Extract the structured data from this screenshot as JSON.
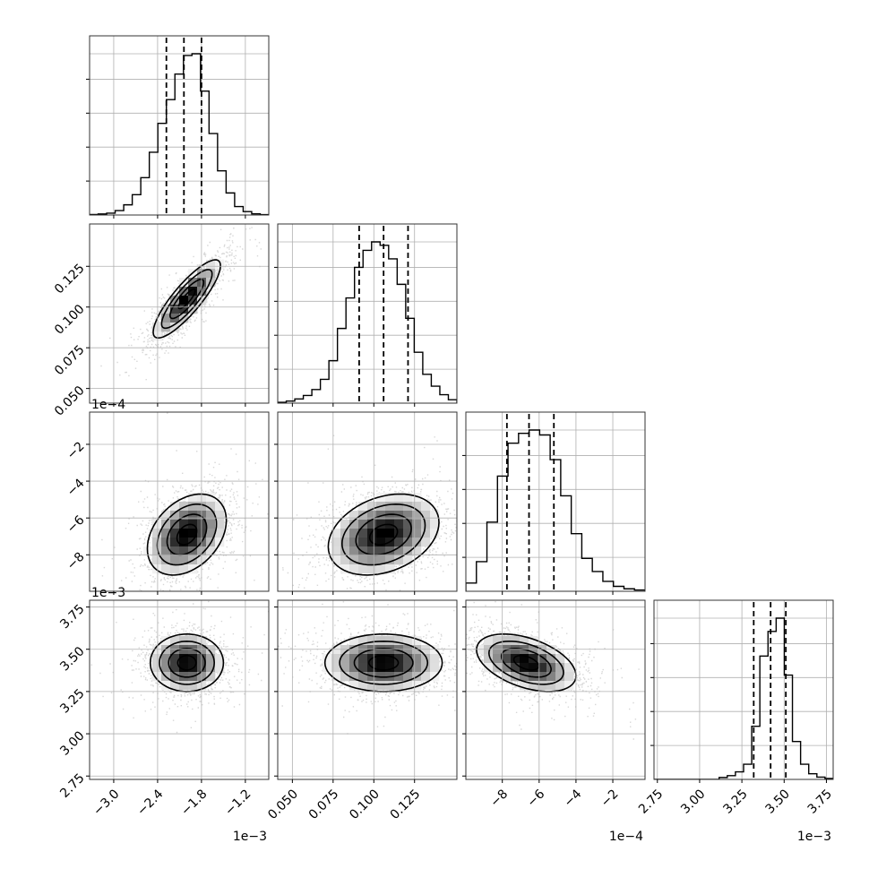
{
  "chart_data": {
    "type": "corner",
    "grid": true,
    "parameters": [
      {
        "ticks": [
          -3.0,
          -2.4,
          -1.8,
          -1.2
        ],
        "tick_labels": [
          "−3.0",
          "−2.4",
          "−1.8",
          "−1.2"
        ],
        "offset_label": "1e−3",
        "range": [
          -3.33,
          -0.88
        ],
        "quantiles": [
          -2.28,
          -2.04,
          -1.8
        ],
        "hist": [
          0.3,
          0.6,
          1.1,
          2.6,
          6,
          12,
          22,
          37,
          54,
          68,
          83,
          94,
          95,
          73,
          48,
          26,
          13,
          5,
          2,
          0.7,
          0.2
        ]
      },
      {
        "ticks": [
          0.05,
          0.075,
          0.1,
          0.125
        ],
        "tick_labels": [
          "0.050",
          "0.075",
          "0.100",
          "0.125"
        ],
        "range": [
          0.041,
          0.151
        ],
        "quantiles": [
          0.091,
          0.106,
          0.121
        ],
        "hist": [
          0.5,
          1.2,
          2.5,
          4.5,
          8,
          14,
          25,
          44,
          62,
          80,
          90,
          95,
          93,
          85,
          70,
          50,
          30,
          17,
          10,
          5,
          2
        ]
      },
      {
        "ticks": [
          -8,
          -6,
          -4,
          -2
        ],
        "tick_labels": [
          "−8",
          "−6",
          "−4",
          "−2"
        ],
        "offset_label": "1e−4",
        "range": [
          -9.98,
          -0.25
        ],
        "quantiles": [
          -7.75,
          -6.55,
          -5.2
        ],
        "hist": [
          5,
          18,
          42,
          70,
          90,
          96,
          98,
          95,
          80,
          58,
          35,
          20,
          12,
          6,
          3,
          1.5,
          0.8
        ]
      },
      {
        "ticks": [
          2.75,
          3.0,
          3.25,
          3.5,
          3.75
        ],
        "tick_labels": [
          "2.75",
          "3.00",
          "3.25",
          "3.50",
          "3.75"
        ],
        "offset_label": "1e−3",
        "range": [
          2.73,
          3.79
        ],
        "quantiles": [
          3.32,
          3.42,
          3.51
        ],
        "hist": [
          0,
          0,
          0,
          0,
          0,
          0,
          0,
          0,
          1,
          2,
          4,
          8,
          28,
          65,
          78,
          85,
          55,
          20,
          8,
          3,
          1.2,
          0.5
        ]
      }
    ],
    "pairs": [
      {
        "x": 0,
        "y": 1,
        "center": [
          -2.0,
          0.105
        ],
        "sd": [
          0.23,
          0.012
        ],
        "rho": 0.85
      },
      {
        "x": 0,
        "y": 2,
        "center": [
          -2.0,
          -6.9
        ],
        "sd": [
          0.27,
          1.1
        ],
        "rho": 0.35
      },
      {
        "x": 0,
        "y": 3,
        "center": [
          -2.0,
          3.42
        ],
        "sd": [
          0.25,
          0.085
        ],
        "rho": 0.0
      },
      {
        "x": 1,
        "y": 2,
        "center": [
          0.106,
          -6.9
        ],
        "sd": [
          0.017,
          1.1
        ],
        "rho": 0.3
      },
      {
        "x": 1,
        "y": 3,
        "center": [
          0.106,
          3.42
        ],
        "sd": [
          0.018,
          0.085
        ],
        "rho": 0.0
      },
      {
        "x": 2,
        "y": 3,
        "center": [
          -6.7,
          3.42
        ],
        "sd": [
          1.35,
          0.085
        ],
        "rho": -0.45
      }
    ]
  }
}
